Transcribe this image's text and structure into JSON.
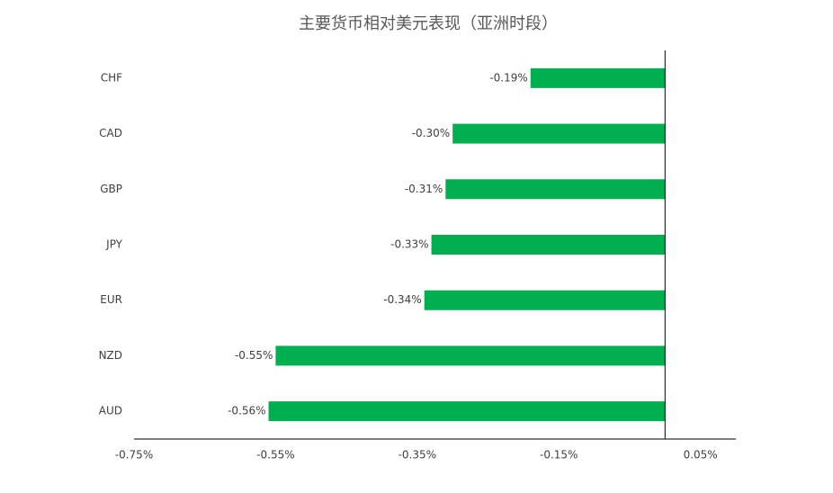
{
  "chart_data": {
    "type": "hbar",
    "title": "主要货币相对美元表现（亚洲时段）",
    "categories": [
      "CHF",
      "CAD",
      "GBP",
      "JPY",
      "EUR",
      "NZD",
      "AUD"
    ],
    "values": [
      -0.19,
      -0.3,
      -0.31,
      -0.33,
      -0.34,
      -0.55,
      -0.56
    ],
    "value_labels": [
      "-0.19%",
      "-0.30%",
      "-0.31%",
      "-0.33%",
      "-0.34%",
      "-0.55%",
      "-0.56%"
    ],
    "color": "#00b050",
    "xlim": [
      -0.75,
      0.1
    ],
    "xticks": [
      {
        "value": -0.75,
        "label": "-0.75%"
      },
      {
        "value": -0.55,
        "label": "-0.55%"
      },
      {
        "value": -0.35,
        "label": "-0.35%"
      },
      {
        "value": -0.15,
        "label": "-0.15%"
      },
      {
        "value": 0.05,
        "label": "0.05%"
      }
    ],
    "grid": false
  }
}
